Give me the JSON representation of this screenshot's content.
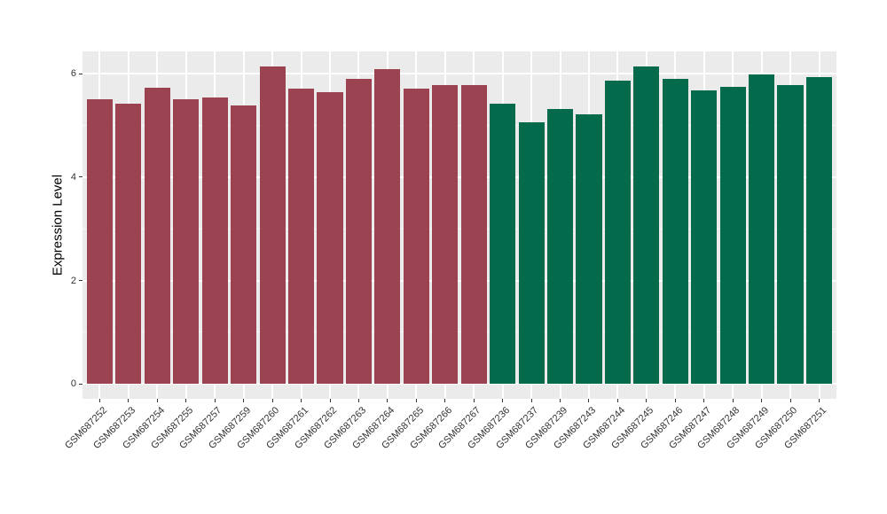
{
  "chart_data": {
    "type": "bar",
    "title": "",
    "xlabel": "",
    "ylabel": "Expression Level",
    "ylim": [
      0,
      6.45
    ],
    "yticks": [
      0,
      2,
      4,
      6
    ],
    "ytick_labels": [
      "0",
      "2",
      "4",
      "6"
    ],
    "yticks_minor": [
      1,
      3,
      5
    ],
    "grid": true,
    "legend_position": "none",
    "categories": [
      "GSM687252",
      "GSM687253",
      "GSM687254",
      "GSM687255",
      "GSM687257",
      "GSM687259",
      "GSM687260",
      "GSM687261",
      "GSM687262",
      "GSM687263",
      "GSM687264",
      "GSM687265",
      "GSM687266",
      "GSM687267",
      "GSM687236",
      "GSM687237",
      "GSM687239",
      "GSM687243",
      "GSM687244",
      "GSM687245",
      "GSM687246",
      "GSM687247",
      "GSM687248",
      "GSM687249",
      "GSM687250",
      "GSM687251"
    ],
    "values": [
      5.51,
      5.42,
      5.73,
      5.51,
      5.55,
      5.39,
      6.15,
      5.72,
      5.65,
      5.91,
      6.09,
      5.71,
      5.78,
      5.78,
      5.43,
      5.07,
      5.32,
      5.21,
      5.86,
      6.14,
      5.9,
      5.68,
      5.74,
      5.98,
      5.78,
      5.94
    ],
    "bar_groups": [
      0,
      0,
      0,
      0,
      0,
      0,
      0,
      0,
      0,
      0,
      0,
      0,
      0,
      0,
      1,
      1,
      1,
      1,
      1,
      1,
      1,
      1,
      1,
      1,
      1,
      1
    ],
    "group_colors": [
      "#9C4351",
      "#046A4C"
    ],
    "colors": {
      "panel_background": "#EBEBEB",
      "grid_major": "#FFFFFF",
      "grid_minor": "rgba(255,255,255,0.6)",
      "axis_text": "#333333",
      "axis_title": "#000000",
      "figure_background": "#FFFFFF"
    }
  }
}
